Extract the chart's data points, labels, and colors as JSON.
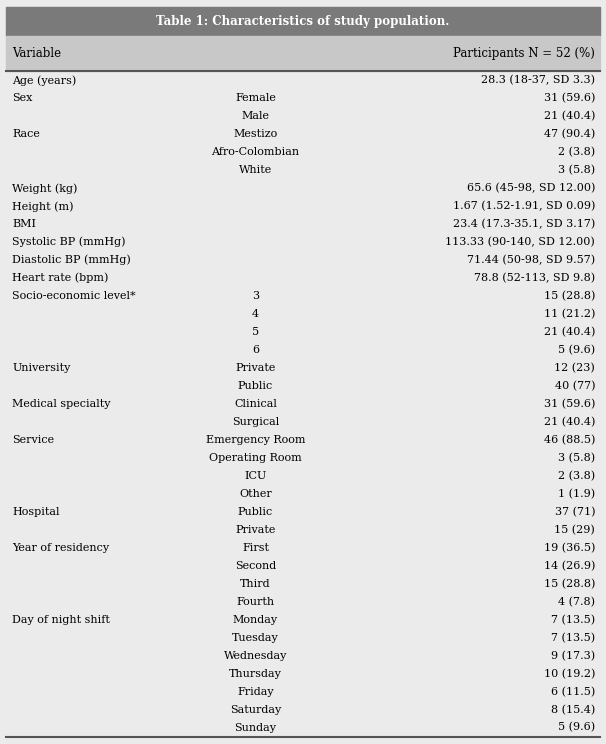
{
  "title": "Table 1: Characteristics of study population.",
  "header": [
    "Variable",
    "Participants N = 52 (%)"
  ],
  "rows": [
    [
      "Age (years)",
      "",
      "28.3 (18-37, SD 3.3)"
    ],
    [
      "Sex",
      "Female",
      "31 (59.6)"
    ],
    [
      "",
      "Male",
      "21 (40.4)"
    ],
    [
      "Race",
      "Mestizo",
      "47 (90.4)"
    ],
    [
      "",
      "Afro-Colombian",
      "2 (3.8)"
    ],
    [
      "",
      "White",
      "3 (5.8)"
    ],
    [
      "Weight (kg)",
      "",
      "65.6 (45-98, SD 12.00)"
    ],
    [
      "Height (m)",
      "",
      "1.67 (1.52-1.91, SD 0.09)"
    ],
    [
      "BMI",
      "",
      "23.4 (17.3-35.1, SD 3.17)"
    ],
    [
      "Systolic BP (mmHg)",
      "",
      "113.33 (90-140, SD 12.00)"
    ],
    [
      "Diastolic BP (mmHg)",
      "",
      "71.44 (50-98, SD 9.57)"
    ],
    [
      "Heart rate (bpm)",
      "",
      "78.8 (52-113, SD 9.8)"
    ],
    [
      "Socio-economic level*",
      "3",
      "15 (28.8)"
    ],
    [
      "",
      "4",
      "11 (21.2)"
    ],
    [
      "",
      "5",
      "21 (40.4)"
    ],
    [
      "",
      "6",
      "5 (9.6)"
    ],
    [
      "University",
      "Private",
      "12 (23)"
    ],
    [
      "",
      "Public",
      "40 (77)"
    ],
    [
      "Medical specialty",
      "Clinical",
      "31 (59.6)"
    ],
    [
      "",
      "Surgical",
      "21 (40.4)"
    ],
    [
      "Service",
      "Emergency Room",
      "46 (88.5)"
    ],
    [
      "",
      "Operating Room",
      "3 (5.8)"
    ],
    [
      "",
      "ICU",
      "2 (3.8)"
    ],
    [
      "",
      "Other",
      "1 (1.9)"
    ],
    [
      "Hospital",
      "Public",
      "37 (71)"
    ],
    [
      "",
      "Private",
      "15 (29)"
    ],
    [
      "Year of residency",
      "First",
      "19 (36.5)"
    ],
    [
      "",
      "Second",
      "14 (26.9)"
    ],
    [
      "",
      "Third",
      "15 (28.8)"
    ],
    [
      "",
      "Fourth",
      "4 (7.8)"
    ],
    [
      "Day of night shift",
      "Monday",
      "7 (13.5)"
    ],
    [
      "",
      "Tuesday",
      "7 (13.5)"
    ],
    [
      "",
      "Wednesday",
      "9 (17.3)"
    ],
    [
      "",
      "Thursday",
      "10 (19.2)"
    ],
    [
      "",
      "Friday",
      "6 (11.5)"
    ],
    [
      "",
      "Saturday",
      "8 (15.4)"
    ],
    [
      "",
      "Sunday",
      "5 (9.6)"
    ]
  ],
  "title_bg": "#7a7a7a",
  "header_bg": "#c8c8c8",
  "row_bg": "#ebebeb",
  "title_color": "#ffffff",
  "header_color": "#000000",
  "row_color": "#000000",
  "title_fontsize": 8.5,
  "header_fontsize": 8.5,
  "row_fontsize": 8.0
}
